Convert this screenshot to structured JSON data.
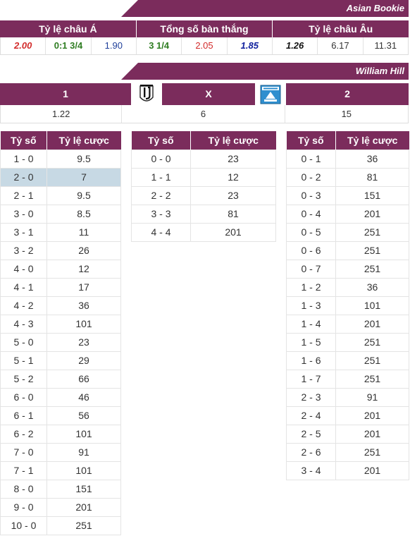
{
  "asian_bookie": {
    "title": "Asian Bookie",
    "groups": [
      "Tỷ lệ châu Á",
      "Tổng số bàn thắng",
      "Tỷ lệ châu Âu"
    ],
    "odds": {
      "asian": [
        "2.00",
        "0:1 3/4",
        "1.90"
      ],
      "total": [
        "3 1/4",
        "2.05",
        "1.85"
      ],
      "euro": [
        "1.26",
        "6.17",
        "11.31"
      ]
    }
  },
  "william_hill": {
    "title": "William Hill",
    "labels": {
      "home": "1",
      "draw": "X",
      "away": "2"
    },
    "odds": {
      "home": "1.22",
      "draw": "6",
      "away": "15"
    },
    "home_logo": "juventus-crest-icon",
    "away_logo": "away-team-crest-icon"
  },
  "score_tables": {
    "header_score": "Tỷ số",
    "header_odds": "Tỷ lệ cược",
    "highlight_color": "#c7d9e4",
    "home_win": [
      {
        "score": "1 - 0",
        "odds": "9.5"
      },
      {
        "score": "2 - 0",
        "odds": "7"
      },
      {
        "score": "2 - 1",
        "odds": "9.5"
      },
      {
        "score": "3 - 0",
        "odds": "8.5"
      },
      {
        "score": "3 - 1",
        "odds": "11"
      },
      {
        "score": "3 - 2",
        "odds": "26"
      },
      {
        "score": "4 - 0",
        "odds": "12"
      },
      {
        "score": "4 - 1",
        "odds": "17"
      },
      {
        "score": "4 - 2",
        "odds": "36"
      },
      {
        "score": "4 - 3",
        "odds": "101"
      },
      {
        "score": "5 - 0",
        "odds": "23"
      },
      {
        "score": "5 - 1",
        "odds": "29"
      },
      {
        "score": "5 - 2",
        "odds": "66"
      },
      {
        "score": "6 - 0",
        "odds": "46"
      },
      {
        "score": "6 - 1",
        "odds": "56"
      },
      {
        "score": "6 - 2",
        "odds": "101"
      },
      {
        "score": "7 - 0",
        "odds": "91"
      },
      {
        "score": "7 - 1",
        "odds": "101"
      },
      {
        "score": "8 - 0",
        "odds": "151"
      },
      {
        "score": "9 - 0",
        "odds": "201"
      },
      {
        "score": "10 - 0",
        "odds": "251"
      }
    ],
    "draw": [
      {
        "score": "0 - 0",
        "odds": "23"
      },
      {
        "score": "1 - 1",
        "odds": "12"
      },
      {
        "score": "2 - 2",
        "odds": "23"
      },
      {
        "score": "3 - 3",
        "odds": "81"
      },
      {
        "score": "4 - 4",
        "odds": "201"
      }
    ],
    "away_win": [
      {
        "score": "0 - 1",
        "odds": "36"
      },
      {
        "score": "0 - 2",
        "odds": "81"
      },
      {
        "score": "0 - 3",
        "odds": "151"
      },
      {
        "score": "0 - 4",
        "odds": "201"
      },
      {
        "score": "0 - 5",
        "odds": "251"
      },
      {
        "score": "0 - 6",
        "odds": "251"
      },
      {
        "score": "0 - 7",
        "odds": "251"
      },
      {
        "score": "1 - 2",
        "odds": "36"
      },
      {
        "score": "1 - 3",
        "odds": "101"
      },
      {
        "score": "1 - 4",
        "odds": "201"
      },
      {
        "score": "1 - 5",
        "odds": "251"
      },
      {
        "score": "1 - 6",
        "odds": "251"
      },
      {
        "score": "1 - 7",
        "odds": "251"
      },
      {
        "score": "2 - 3",
        "odds": "91"
      },
      {
        "score": "2 - 4",
        "odds": "201"
      },
      {
        "score": "2 - 5",
        "odds": "201"
      },
      {
        "score": "2 - 6",
        "odds": "251"
      },
      {
        "score": "3 - 4",
        "odds": "201"
      }
    ]
  }
}
